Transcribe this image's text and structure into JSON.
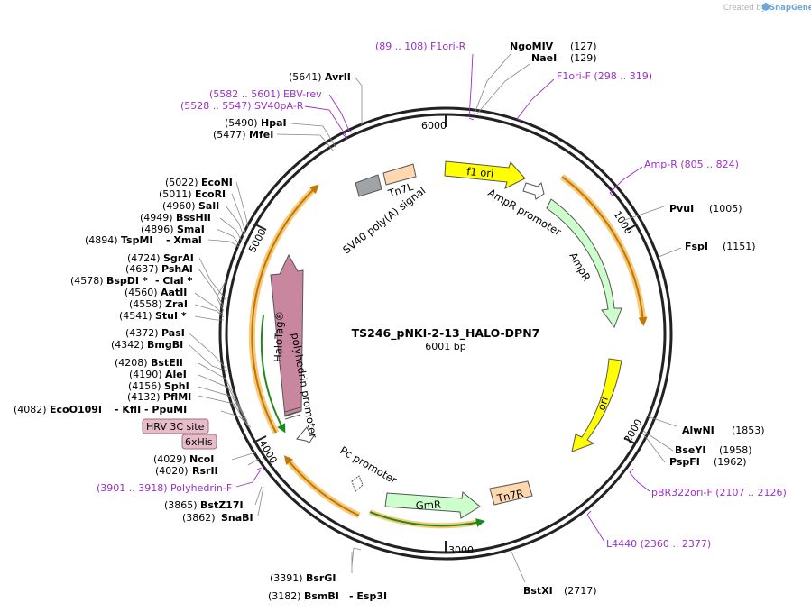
{
  "watermark": {
    "prefix": "Created by",
    "brand": "SnapGene"
  },
  "map": {
    "name": "TS246_pNKI-2-13_HALO-DPN7",
    "length_label": "6001 bp",
    "ticks": [
      "1000",
      "2000",
      "3000",
      "4000",
      "5000",
      "6000"
    ]
  },
  "sites": [
    {
      "pos": "(127)",
      "name": "NgoMIV",
      "extra": ""
    },
    {
      "pos": "(129)",
      "name": "NaeI",
      "extra": ""
    },
    {
      "pos": "(1005)",
      "name": "PvuI",
      "extra": ""
    },
    {
      "pos": "(1151)",
      "name": "FspI",
      "extra": ""
    },
    {
      "pos": "(1853)",
      "name": "AlwNI",
      "extra": ""
    },
    {
      "pos": "(1958)",
      "name": "BseYI",
      "extra": ""
    },
    {
      "pos": "(1962)",
      "name": "PspFI",
      "extra": ""
    },
    {
      "pos": "(2717)",
      "name": "BstXI",
      "extra": ""
    },
    {
      "pos": "(3182)",
      "name": "BsmBI",
      "extra": "- Esp3I"
    },
    {
      "pos": "(3391)",
      "name": "BsrGI",
      "extra": ""
    },
    {
      "pos": "(3862)",
      "name": "SnaBI",
      "extra": ""
    },
    {
      "pos": "(3865)",
      "name": "BstZ17I",
      "extra": ""
    },
    {
      "pos": "(4020)",
      "name": "RsrII",
      "extra": ""
    },
    {
      "pos": "(4029)",
      "name": "NcoI",
      "extra": ""
    },
    {
      "pos": "(4082)",
      "name": "EcoO109I",
      "extra": "- KflI - PpuMI"
    },
    {
      "pos": "(4132)",
      "name": "PflMI",
      "extra": ""
    },
    {
      "pos": "(4156)",
      "name": "SphI",
      "extra": ""
    },
    {
      "pos": "(4190)",
      "name": "AleI",
      "extra": ""
    },
    {
      "pos": "(4208)",
      "name": "BstEII",
      "extra": ""
    },
    {
      "pos": "(4342)",
      "name": "BmgBI",
      "extra": ""
    },
    {
      "pos": "(4372)",
      "name": "PasI",
      "extra": ""
    },
    {
      "pos": "(4541)",
      "name": "StuI *",
      "extra": ""
    },
    {
      "pos": "(4558)",
      "name": "ZraI",
      "extra": ""
    },
    {
      "pos": "(4560)",
      "name": "AatII",
      "extra": ""
    },
    {
      "pos": "(4578)",
      "name": "BspDI *",
      "extra": "- ClaI *"
    },
    {
      "pos": "(4637)",
      "name": "PshAI",
      "extra": ""
    },
    {
      "pos": "(4724)",
      "name": "SgrAI",
      "extra": ""
    },
    {
      "pos": "(4894)",
      "name": "TspMI",
      "extra": "- XmaI"
    },
    {
      "pos": "(4896)",
      "name": "SmaI",
      "extra": ""
    },
    {
      "pos": "(4949)",
      "name": "BssHII",
      "extra": ""
    },
    {
      "pos": "(4960)",
      "name": "SalI",
      "extra": ""
    },
    {
      "pos": "(5011)",
      "name": "EcoRI",
      "extra": ""
    },
    {
      "pos": "(5022)",
      "name": "EcoNI",
      "extra": ""
    },
    {
      "pos": "(5477)",
      "name": "MfeI",
      "extra": ""
    },
    {
      "pos": "(5490)",
      "name": "HpaI",
      "extra": ""
    },
    {
      "pos": "(5641)",
      "name": "AvrII",
      "extra": ""
    }
  ],
  "primers": [
    {
      "text": "(89 .. 108)  F1ori-R"
    },
    {
      "text": "F1ori-F   (298 .. 319)"
    },
    {
      "text": "Amp-R   (805 .. 824)"
    },
    {
      "text": "pBR322ori-F   (2107 .. 2126)"
    },
    {
      "text": "L4440   (2360 .. 2377)"
    },
    {
      "text": "(3901 .. 3918)  Polyhedrin-F"
    },
    {
      "text": "(5528 .. 5547)  SV40pA-R"
    },
    {
      "text": "(5582 .. 5601)  EBV-rev"
    }
  ],
  "features": {
    "f1_ori": "f1 ori",
    "ampr_promoter": "AmpR promoter",
    "ampr": "AmpR",
    "ori": "ori",
    "tn7r": "Tn7R",
    "gmr": "GmR",
    "pc_promoter": "Pc promoter",
    "polyhedrin_promoter": "polyhedrin promoter",
    "halotag": "HaloTag®",
    "hrv3c": "HRV 3C site",
    "his6": "6xHis",
    "tn7l": "Tn7L",
    "sv40_pa": "SV40 poly(A) signal"
  },
  "colors": {
    "backbone": "#222222",
    "f1_ori": "#ffff00",
    "ampr": "#ccffcc",
    "ori": "#ffff00",
    "tn7": "#ffd8b0",
    "gmr": "#ccffcc",
    "halotag": "#c9879f",
    "sv40": "#a0a4a8",
    "orf": "#f0a830",
    "orf_green": "#22aa22",
    "primer": "#9b30c8",
    "tag_box": "#e6bcc8"
  }
}
